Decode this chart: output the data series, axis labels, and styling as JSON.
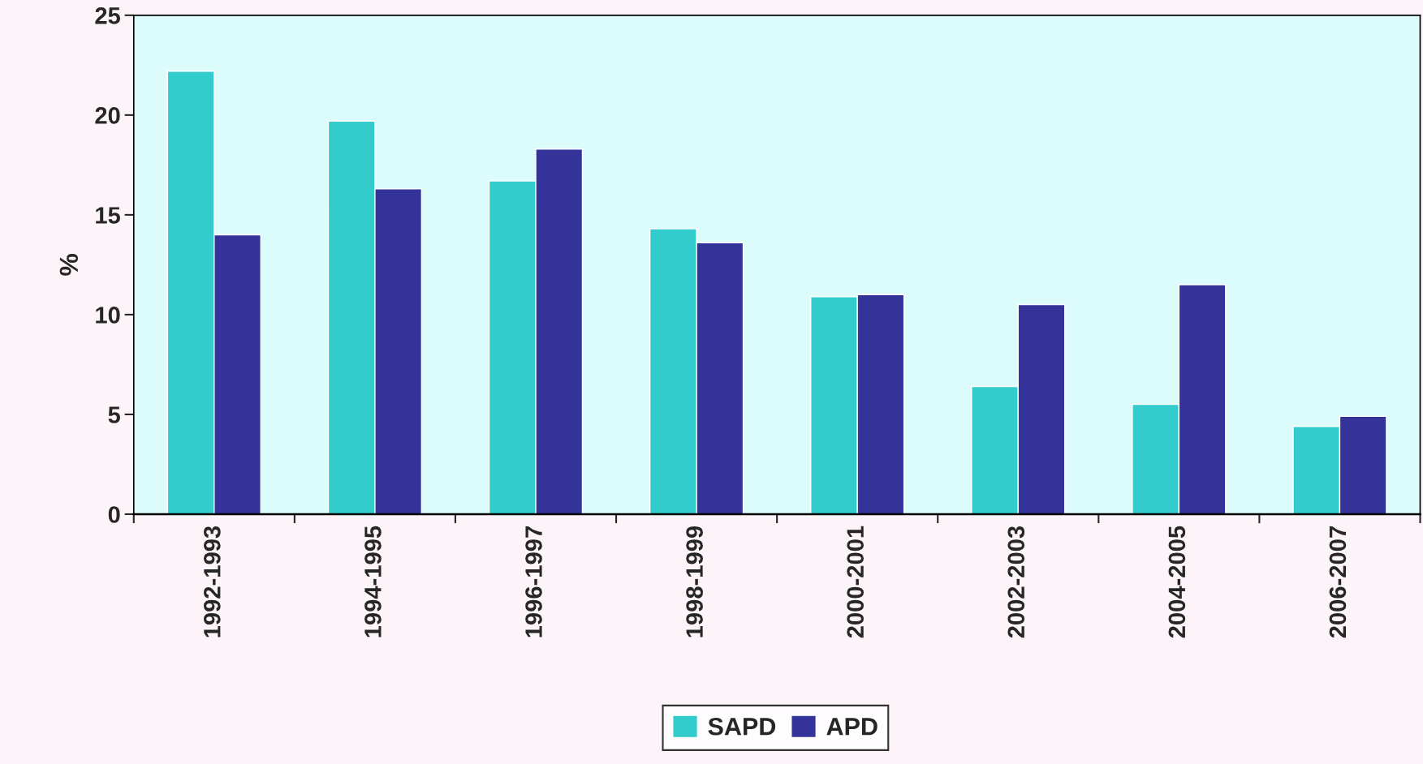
{
  "chart_data": {
    "type": "bar",
    "ylabel": "%",
    "categories": [
      "1992-1993",
      "1994-1995",
      "1996-1997",
      "1998-1999",
      "2000-2001",
      "2002-2003",
      "2004-2005",
      "2006-2007"
    ],
    "series": [
      {
        "name": "SAPD",
        "color": "#33cccc",
        "values": [
          22.2,
          19.7,
          16.7,
          14.3,
          10.9,
          6.4,
          5.5,
          4.4
        ]
      },
      {
        "name": "APD",
        "color": "#333399",
        "values": [
          14.0,
          16.3,
          18.3,
          13.6,
          11.0,
          10.5,
          11.5,
          4.9
        ]
      }
    ],
    "ylim": [
      0,
      25
    ],
    "yticks": [
      0,
      5,
      10,
      15,
      20,
      25
    ],
    "grid": false,
    "legend": "bottom"
  }
}
